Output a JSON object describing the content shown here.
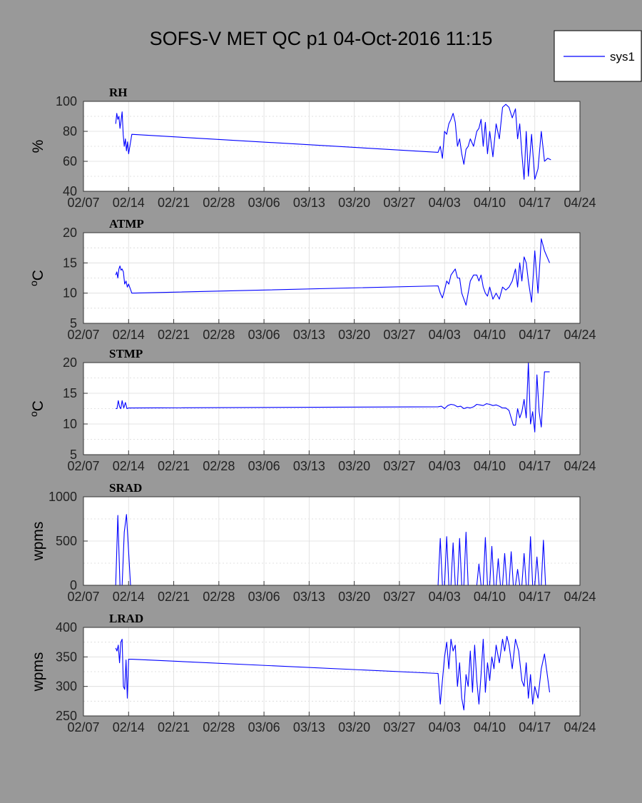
{
  "chart_data": {
    "type": "line",
    "title": "SOFS-V MET QC p1 04-Oct-2016 11:15",
    "legend": {
      "placement": "top-right",
      "entries": [
        "sys1"
      ]
    },
    "line_color": "#0000ff",
    "x_ticks": [
      "02/07",
      "02/14",
      "02/21",
      "02/28",
      "03/06",
      "03/13",
      "03/20",
      "03/27",
      "04/03",
      "04/10",
      "04/17",
      "04/24"
    ],
    "grid": true,
    "panels": [
      {
        "name": "RH",
        "ylabel": "%",
        "ylim": [
          40,
          100
        ],
        "y_ticks": [
          "40",
          "60",
          "80",
          "100"
        ],
        "series": [
          {
            "name": "sys1",
            "x": [
              "02/12",
              "02/12",
              "02/12",
              "02/12",
              "02/12",
              "02/12",
              "02/13",
              "02/13",
              "02/13",
              "02/13",
              "02/13",
              "02/13",
              "02/14",
              "02/14",
              "04/02",
              "04/02",
              "04/02",
              "04/03",
              "04/03",
              "04/03",
              "04/04",
              "04/04",
              "04/04",
              "04/05",
              "04/05",
              "04/05",
              "04/06",
              "04/06",
              "04/06",
              "04/07",
              "04/07",
              "04/08",
              "04/08",
              "04/08",
              "04/09",
              "04/09",
              "04/09",
              "04/10",
              "04/10",
              "04/11",
              "04/11",
              "04/12",
              "04/12",
              "04/13",
              "04/13",
              "04/14",
              "04/14",
              "04/14",
              "04/15",
              "04/15",
              "04/15",
              "04/16",
              "04/16",
              "04/17",
              "04/17",
              "04/18",
              "04/18",
              "04/19",
              "04/19"
            ],
            "y": [
              85,
              92,
              88,
              90,
              82,
              87,
              93,
              78,
              70,
              75,
              67,
              73,
              65,
              78,
              66,
              70,
              62,
              80,
              78,
              85,
              88,
              92,
              86,
              70,
              75,
              65,
              58,
              68,
              70,
              75,
              70,
              80,
              82,
              88,
              70,
              86,
              65,
              80,
              63,
              85,
              75,
              96,
              98,
              96,
              89,
              95,
              75,
              85,
              65,
              48,
              80,
              50,
              78,
              48,
              55,
              80,
              60,
              62,
              61
            ]
          }
        ]
      },
      {
        "name": "ATMP",
        "ylabel": "oC",
        "ylim": [
          5,
          20
        ],
        "y_ticks": [
          "5",
          "10",
          "15",
          "20"
        ],
        "series": [
          {
            "name": "sys1",
            "x": [
              "02/12",
              "02/12",
              "02/12",
              "02/12",
              "02/12",
              "02/12",
              "02/13",
              "02/13",
              "02/13",
              "02/13",
              "02/13",
              "02/14",
              "02/14",
              "04/02",
              "04/02",
              "04/02",
              "04/03",
              "04/03",
              "04/03",
              "04/04",
              "04/04",
              "04/04",
              "04/05",
              "04/05",
              "04/05",
              "04/06",
              "04/06",
              "04/06",
              "04/07",
              "04/07",
              "04/08",
              "04/08",
              "04/08",
              "04/09",
              "04/09",
              "04/09",
              "04/10",
              "04/10",
              "04/11",
              "04/11",
              "04/12",
              "04/12",
              "04/13",
              "04/13",
              "04/14",
              "04/14",
              "04/14",
              "04/15",
              "04/15",
              "04/15",
              "04/16",
              "04/16",
              "04/17",
              "04/17",
              "04/18",
              "04/18",
              "04/19"
            ],
            "y": [
              13,
              13.5,
              12.5,
              14,
              14.5,
              13.8,
              14,
              13.5,
              11.5,
              12,
              11,
              11.5,
              10,
              11.2,
              10,
              9.2,
              10.5,
              12,
              11.5,
              13,
              13.5,
              14,
              12.5,
              12.5,
              10,
              9,
              8,
              10,
              12,
              13,
              13,
              12,
              13,
              11,
              10,
              9.5,
              11,
              9,
              10,
              9,
              11,
              10.5,
              11,
              12,
              14,
              11,
              15,
              12,
              16,
              15,
              12,
              8.5,
              17,
              10,
              19,
              17,
              15
            ]
          }
        ]
      },
      {
        "name": "STMP",
        "ylabel": "oC",
        "ylim": [
          5,
          20
        ],
        "y_ticks": [
          "5",
          "10",
          "15",
          "20"
        ],
        "series": [
          {
            "name": "sys1",
            "x": [
              "02/12",
              "02/12",
              "02/12",
              "02/12",
              "02/12",
              "02/13",
              "02/13",
              "02/13",
              "02/13",
              "02/14",
              "02/14",
              "04/02",
              "04/02",
              "04/03",
              "04/03",
              "04/04",
              "04/04",
              "04/05",
              "04/05",
              "04/06",
              "04/06",
              "04/07",
              "04/07",
              "04/08",
              "04/08",
              "04/09",
              "04/09",
              "04/10",
              "04/10",
              "04/11",
              "04/11",
              "04/12",
              "04/12",
              "04/13",
              "04/13",
              "04/13",
              "04/14",
              "04/14",
              "04/14",
              "04/15",
              "04/15",
              "04/15",
              "04/16",
              "04/16",
              "04/16",
              "04/17",
              "04/17",
              "04/17",
              "04/18",
              "04/18",
              "04/19"
            ],
            "y": [
              12.5,
              12.5,
              13.8,
              12.8,
              12.5,
              13.8,
              12.6,
              13.5,
              12.5,
              12.6,
              12.6,
              12.8,
              12.9,
              12.5,
              13,
              13.2,
              13.1,
              12.8,
              12.9,
              12.5,
              12.7,
              12.6,
              12.8,
              13.2,
              13.1,
              13,
              13.3,
              13.2,
              13,
              13.1,
              12.9,
              12.6,
              12.6,
              12.2,
              11,
              9.8,
              9.8,
              12.5,
              11,
              12,
              14,
              11,
              20,
              10,
              12,
              8.7,
              18,
              12,
              9.5,
              18.5,
              18.5
            ]
          }
        ]
      },
      {
        "name": "SRAD",
        "ylabel": "wpms",
        "ylim": [
          0,
          1000
        ],
        "y_ticks": [
          "0",
          "500",
          "1000"
        ],
        "series": [
          {
            "name": "sys1",
            "x": [
              "02/11",
              "02/12",
              "02/12",
              "02/12",
              "02/13",
              "02/13",
              "02/13",
              "02/14",
              "04/02",
              "04/02",
              "04/02",
              "04/03",
              "04/03",
              "04/03",
              "04/04",
              "04/04",
              "04/04",
              "04/05",
              "04/05",
              "04/05",
              "04/06",
              "04/06",
              "04/06",
              "04/07",
              "04/08",
              "04/08",
              "04/08",
              "04/09",
              "04/09",
              "04/09",
              "04/10",
              "04/10",
              "04/10",
              "04/11",
              "04/11",
              "04/11",
              "04/12",
              "04/12",
              "04/12",
              "04/13",
              "04/13",
              "04/13",
              "04/14",
              "04/14",
              "04/14",
              "04/15",
              "04/15",
              "04/15",
              "04/16",
              "04/16",
              "04/16",
              "04/17",
              "04/17",
              "04/17",
              "04/18",
              "04/18",
              "04/18",
              "04/19"
            ],
            "y": [
              0,
              0,
              790,
              0,
              0,
              600,
              800,
              0,
              0,
              530,
              0,
              0,
              550,
              0,
              0,
              480,
              0,
              0,
              530,
              0,
              0,
              600,
              0,
              0,
              0,
              240,
              0,
              0,
              540,
              0,
              0,
              440,
              0,
              0,
              300,
              0,
              0,
              360,
              0,
              0,
              380,
              0,
              0,
              180,
              0,
              0,
              360,
              0,
              0,
              550,
              0,
              0,
              320,
              0,
              0,
              510,
              0,
              0
            ]
          }
        ]
      },
      {
        "name": "LRAD",
        "ylabel": "wpms",
        "ylim": [
          250,
          400
        ],
        "y_ticks": [
          "250",
          "300",
          "350",
          "400"
        ],
        "series": [
          {
            "name": "sys1",
            "x": [
              "02/12",
              "02/12",
              "02/12",
              "02/12",
              "02/12",
              "02/13",
              "02/13",
              "02/13",
              "02/13",
              "02/13",
              "02/14",
              "02/14",
              "04/02",
              "04/02",
              "04/02",
              "04/03",
              "04/03",
              "04/03",
              "04/04",
              "04/04",
              "04/04",
              "04/05",
              "04/05",
              "04/05",
              "04/06",
              "04/06",
              "04/06",
              "04/07",
              "04/07",
              "04/07",
              "04/08",
              "04/08",
              "04/08",
              "04/09",
              "04/09",
              "04/09",
              "04/10",
              "04/10",
              "04/10",
              "04/11",
              "04/11",
              "04/12",
              "04/12",
              "04/12",
              "04/13",
              "04/13",
              "04/14",
              "04/14",
              "04/15",
              "04/15",
              "04/15",
              "04/16",
              "04/16",
              "04/16",
              "04/17",
              "04/17",
              "04/18",
              "04/18",
              "04/19"
            ],
            "y": [
              365,
              360,
              370,
              340,
              375,
              380,
              300,
              295,
              345,
              280,
              346,
              346,
              322,
              270,
              310,
              350,
              375,
              330,
              380,
              360,
              370,
              300,
              340,
              280,
              260,
              320,
              300,
              360,
              290,
              370,
              310,
              270,
              320,
              380,
              290,
              340,
              310,
              350,
              330,
              370,
              340,
              380,
              360,
              385,
              370,
              330,
              380,
              360,
              310,
              300,
              340,
              280,
              320,
              270,
              300,
              280,
              330,
              355,
              290
            ]
          }
        ]
      }
    ]
  }
}
